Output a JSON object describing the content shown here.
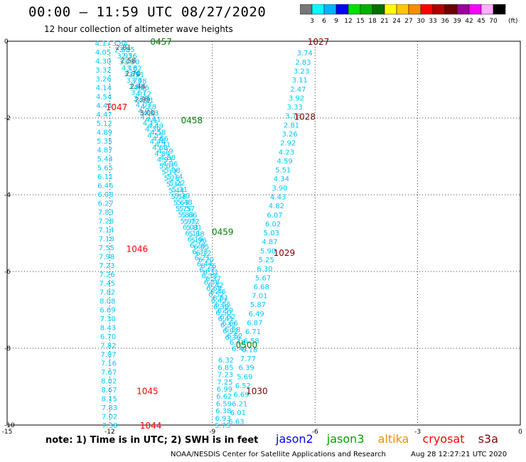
{
  "title": "00:00 – 11:59 UTC 08/27/2020",
  "subtitle": "12 hour collection of altimeter wave heights",
  "note": "note: 1) Time is in UTC; 2) SWH is in feet",
  "credit": "NOAA/NESDIS Center for Satellite Applications and Research",
  "timestamp": "Aug 28 12:27:21 UTC 2020",
  "colorbar": {
    "unit": "(ft)",
    "ticks": [
      "3",
      "6",
      "9",
      "12",
      "15",
      "18",
      "21",
      "24",
      "27",
      "30",
      "33",
      "36",
      "39",
      "42",
      "45",
      "70"
    ],
    "colors": [
      "#777777",
      "#00ffff",
      "#00b4ff",
      "#0000ff",
      "#00e000",
      "#00b000",
      "#007000",
      "#ffff00",
      "#ffc800",
      "#ff8c00",
      "#ff0000",
      "#b00000",
      "#6b0000",
      "#9a009a",
      "#ff00ff",
      "#ffb0ff",
      "#000000"
    ]
  },
  "legend": [
    {
      "name": "jason2",
      "color": "#0000ff"
    },
    {
      "name": "jason3",
      "color": "#00a000"
    },
    {
      "name": "altika",
      "color": "#ff8c00"
    },
    {
      "name": "cryosat",
      "color": "#ff0000"
    },
    {
      "name": "s3a",
      "color": "#800000"
    }
  ],
  "chart_data": {
    "type": "scatter",
    "xlim": [
      -15,
      0
    ],
    "ylim": [
      -10,
      0
    ],
    "xticks": [
      "-15",
      "-12",
      "-9",
      "-6",
      "-3",
      "0"
    ],
    "yticks": [
      "0",
      "-2",
      "-4",
      "-6",
      "-8",
      "-10"
    ],
    "grid": true,
    "time_labels": [
      {
        "text": "0457",
        "x": -10.5,
        "y": 0.0,
        "color": "#008000"
      },
      {
        "text": "0458",
        "x": -9.6,
        "y": -2.05,
        "color": "#008000"
      },
      {
        "text": "0459",
        "x": -8.7,
        "y": -4.95,
        "color": "#008000"
      },
      {
        "text": "0500",
        "x": -8.0,
        "y": -7.9,
        "color": "#008000"
      },
      {
        "text": "1047",
        "x": -11.8,
        "y": -1.7,
        "color": "#ff0000"
      },
      {
        "text": "1046",
        "x": -11.2,
        "y": -5.4,
        "color": "#ff0000"
      },
      {
        "text": "1045",
        "x": -10.9,
        "y": -9.1,
        "color": "#ff0000"
      },
      {
        "text": "1044",
        "x": -10.8,
        "y": -10.0,
        "color": "#ff0000"
      },
      {
        "text": "1027",
        "x": -5.9,
        "y": 0.0,
        "color": "#800000"
      },
      {
        "text": "1028",
        "x": -6.3,
        "y": -1.95,
        "color": "#800000"
      },
      {
        "text": "1029",
        "x": -6.9,
        "y": -5.5,
        "color": "#800000"
      },
      {
        "text": "1030",
        "x": -7.7,
        "y": -9.1,
        "color": "#800000"
      }
    ],
    "series": [
      {
        "name": "cryosat",
        "color": "#00c8ff",
        "x_start": -12.2,
        "x_end": -12.0,
        "y_start": -0.05,
        "y_end": -10.0,
        "values": [
          "4.17",
          "4.05",
          "4.30",
          "3.32",
          "3.26",
          "4.14",
          "4.54",
          "4.48",
          "4.47",
          "5.12",
          "4.89",
          "5.35",
          "4.87",
          "5.44",
          "5.65",
          "6.11",
          "6.46",
          "6.08",
          "6.27",
          "7.83",
          "7.28",
          "7.14",
          "7.18",
          "7.55",
          "7.98",
          "7.23",
          "7.26",
          "7.45",
          "7.82",
          "8.08",
          "6.69",
          "7.30",
          "8.43",
          "6.70",
          "7.82",
          "7.07",
          "7.16",
          "7.67",
          "8.02",
          "8.67",
          "8.15",
          "7.83",
          "7.02",
          "7.38"
        ]
      },
      {
        "name": "jason3-a",
        "color": "#00c8ff",
        "x_start": -11.7,
        "x_end": -8.4,
        "y_start": -0.05,
        "y_end": -7.7,
        "values": [
          "3.84",
          "2.58",
          "3.95",
          "3.78",
          "4.16",
          "3.89",
          "3.73",
          "3.61",
          "3.67",
          "3.00",
          "4.07",
          "4.01",
          "4.11",
          "4.15",
          "4.39",
          "4.55",
          "4.46",
          "4.68",
          "4.84",
          "4.93",
          "5.01",
          "5.17",
          "5.25",
          "5.34",
          "5.44",
          "5.56",
          "5.63",
          "5.75",
          "5.83",
          "5.95",
          "6.03",
          "6.11",
          "6.19",
          "6.28",
          "6.33",
          "6.21",
          "6.44",
          "6.47",
          "6.35",
          "6.56",
          "6.68",
          "6.52",
          "6.43",
          "6.38",
          "6.50",
          "6.41",
          "6.32",
          "6.92",
          "6.36"
        ]
      },
      {
        "name": "jason3-b",
        "color": "#00c8ff",
        "x_start": -11.5,
        "x_end": -8.2,
        "y_start": -0.2,
        "y_end": -8.0,
        "values": [
          "3.55",
          "2.76",
          "3.70",
          "3.82",
          "3.91",
          "3.98",
          "4.06",
          "4.12",
          "4.21",
          "4.28",
          "4.33",
          "4.41",
          "4.49",
          "4.58",
          "4.66",
          "4.71",
          "4.79",
          "4.88",
          "4.96",
          "5.08",
          "5.14",
          "5.22",
          "5.31",
          "5.39",
          "5.48",
          "5.57",
          "5.66",
          "5.72",
          "5.81",
          "5.88",
          "5.96",
          "6.05",
          "6.12",
          "6.20",
          "6.26",
          "6.31",
          "6.37",
          "6.42",
          "6.46",
          "6.51",
          "6.55",
          "6.59",
          "6.62",
          "6.66",
          "6.58",
          "6.52",
          "6.48",
          "6.41"
        ]
      },
      {
        "name": "jason3-gray",
        "color": "#555555",
        "x_start": -11.6,
        "x_end": -10.9,
        "y_start": -0.15,
        "y_end": -1.85,
        "values": [
          "2.81",
          "2.58",
          "2.70",
          "2.44",
          "2.99",
          "3.00"
        ]
      },
      {
        "name": "s3a",
        "color": "#00c8ff",
        "x_start": -6.3,
        "x_end": -8.3,
        "y_start": -0.3,
        "y_end": -9.9,
        "values": [
          "3.74",
          "2.83",
          "3.23",
          "3.11",
          "2.47",
          "3.92",
          "3.33",
          "3.76",
          "2.81",
          "3.26",
          "2.92",
          "4.23",
          "4.59",
          "5.51",
          "4.34",
          "3.90",
          "4.43",
          "4.82",
          "6.07",
          "6.02",
          "5.03",
          "4.87",
          "5.90",
          "5.25",
          "6.30",
          "5.67",
          "6.68",
          "7.01",
          "5.87",
          "6.49",
          "6.87",
          "6.71",
          "6.58",
          "6.18",
          "7.77",
          "6.39",
          "5.69",
          "6.52",
          "6.69",
          "6.21",
          "6.01",
          "6.63"
        ]
      },
      {
        "name": "s3a-lower",
        "color": "#00c8ff",
        "x_start": -8.6,
        "x_end": -8.7,
        "y_start": -8.3,
        "y_end": -10.0,
        "values": [
          "6.32",
          "6.85",
          "7.23",
          "7.25",
          "6.99",
          "6.62",
          "6.59",
          "6.38",
          "6.93",
          "5.75"
        ]
      }
    ]
  }
}
